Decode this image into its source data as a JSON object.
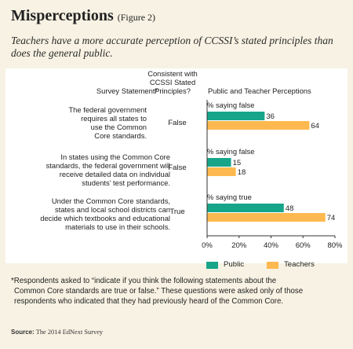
{
  "title": "Misperceptions",
  "figure_label": "(Figure 2)",
  "subtitle": "Teachers have a more accurate perception of CCSSI’s stated principles than does the general public.",
  "headers": {
    "statement": "Survey Statement*",
    "consistent_l1": "Consistent with",
    "consistent_l2": "CCSSI Stated",
    "consistent_l3": "Principles?",
    "perceptions": "Public and Teacher Perceptions"
  },
  "rows": [
    {
      "statement_lines": [
        "The federal government",
        "requires all states to",
        "use the Common",
        "Core standards."
      ],
      "answer": "False",
      "pct_label": "% saying false"
    },
    {
      "statement_lines": [
        "In states using the Common Core",
        "standards, the federal government will",
        "receive detailed data on individual",
        "students’ test performance."
      ],
      "answer": "False",
      "pct_label": "% saying false"
    },
    {
      "statement_lines": [
        "Under the Common Core standards,",
        "states and local school districts can",
        "decide which textbooks and educational",
        "materials to use in their schools."
      ],
      "answer": "True",
      "pct_label": "% saying true"
    }
  ],
  "chart_data": {
    "type": "bar",
    "orientation": "horizontal",
    "categories": [
      "The federal government requires all states to use the Common Core standards.",
      "In states using the Common Core standards, the federal government will receive detailed data on individual students’ test performance.",
      "Under the Common Core standards, states and local school districts can decide which textbooks and educational materials to use in their schools."
    ],
    "series": [
      {
        "name": "Public",
        "values": [
          36,
          15,
          48
        ],
        "color": "#17a58a"
      },
      {
        "name": "Teachers",
        "values": [
          64,
          18,
          74
        ],
        "color": "#fdb94f"
      }
    ],
    "xlim": [
      0,
      80
    ],
    "xticks": [
      "0%",
      "20%",
      "40%",
      "60%",
      "80%"
    ],
    "legend_position": "bottom"
  },
  "legend": {
    "public": "Public",
    "teachers": "Teachers"
  },
  "footnote_lines": [
    "*Respondents asked to “indicate if you think the following statements about the",
    "Common Core standards are true or false.” These questions were asked only of those",
    "respondents who indicated that they had previously heard of the Common Core."
  ],
  "source_label": "Source:",
  "source_text": "The 2014 EdNext Survey"
}
